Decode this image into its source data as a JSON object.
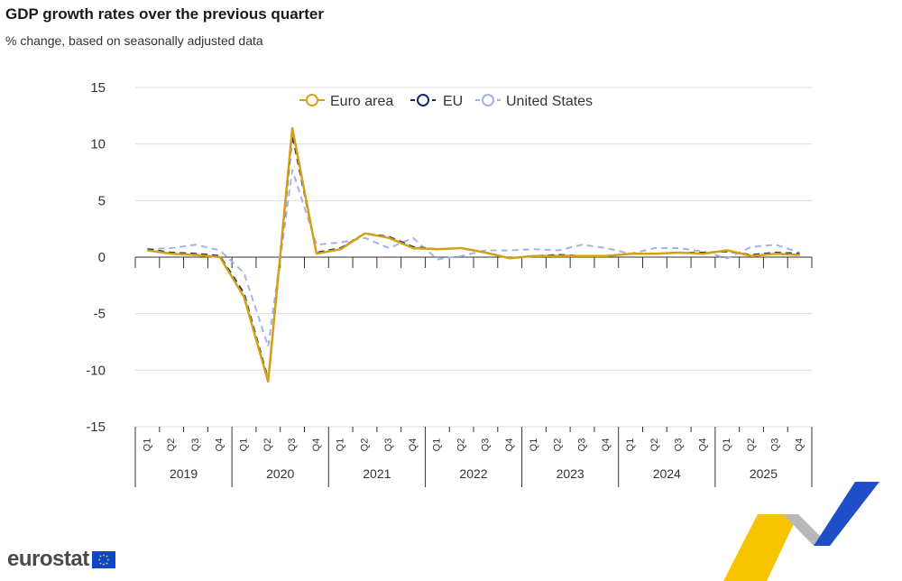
{
  "header": {
    "title": "GDP growth rates over the previous quarter",
    "subtitle": "% change, based on seasonally adjusted data"
  },
  "logo": {
    "text": "eurostat",
    "icon": "eu-flag-icon"
  },
  "colors": {
    "euro_area": "#d4a017",
    "eu": "#0b2b66",
    "us": "#a3b3e6",
    "grid": "#dddddd",
    "axis": "#333333"
  },
  "chart_data": {
    "type": "line",
    "ylim": [
      -15,
      15
    ],
    "yticks": [
      15,
      10,
      5,
      0,
      -5,
      -10,
      -15
    ],
    "grid": "horizontal",
    "legend_position": "top",
    "quarters": [
      "Q1",
      "Q2",
      "Q3",
      "Q4"
    ],
    "years": [
      "2019",
      "2020",
      "2021",
      "2022",
      "2023",
      "2024",
      "2025"
    ],
    "x": [
      "2019-Q1",
      "2019-Q2",
      "2019-Q3",
      "2019-Q4",
      "2020-Q1",
      "2020-Q2",
      "2020-Q3",
      "2020-Q4",
      "2021-Q1",
      "2021-Q2",
      "2021-Q3",
      "2021-Q4",
      "2022-Q1",
      "2022-Q2",
      "2022-Q3",
      "2022-Q4",
      "2023-Q1",
      "2023-Q2",
      "2023-Q3",
      "2023-Q4",
      "2024-Q1",
      "2024-Q2",
      "2024-Q3",
      "2024-Q4",
      "2025-Q1",
      "2025-Q2",
      "2025-Q3",
      "2025-Q4"
    ],
    "series": [
      {
        "name": "Euro area",
        "style": "solid",
        "color": "#d4a017",
        "values": [
          0.6,
          0.3,
          0.2,
          0.0,
          -3.5,
          -11.0,
          11.4,
          0.3,
          0.7,
          2.1,
          1.7,
          0.8,
          0.7,
          0.8,
          0.4,
          -0.1,
          0.1,
          0.1,
          0.1,
          0.1,
          0.3,
          0.3,
          0.4,
          0.3,
          0.6,
          0.1,
          0.3,
          0.2
        ]
      },
      {
        "name": "EU",
        "style": "dashed",
        "color": "#0b2b66",
        "values": [
          0.7,
          0.4,
          0.3,
          0.1,
          -3.2,
          -10.8,
          10.8,
          0.4,
          0.8,
          2.1,
          1.8,
          0.9,
          0.7,
          0.8,
          0.4,
          -0.1,
          0.1,
          0.2,
          0.1,
          0.1,
          0.3,
          0.3,
          0.4,
          0.4,
          0.5,
          0.2,
          0.4,
          0.3
        ]
      },
      {
        "name": "United States",
        "style": "dashed",
        "color": "#a3b3e6",
        "values": [
          0.7,
          0.8,
          1.1,
          0.6,
          -1.4,
          -7.9,
          7.7,
          1.1,
          1.3,
          1.7,
          0.8,
          1.7,
          -0.2,
          0.1,
          0.6,
          0.6,
          0.7,
          0.6,
          1.1,
          0.8,
          0.3,
          0.8,
          0.8,
          0.5,
          -0.1,
          0.9,
          1.1,
          0.4
        ]
      }
    ]
  }
}
